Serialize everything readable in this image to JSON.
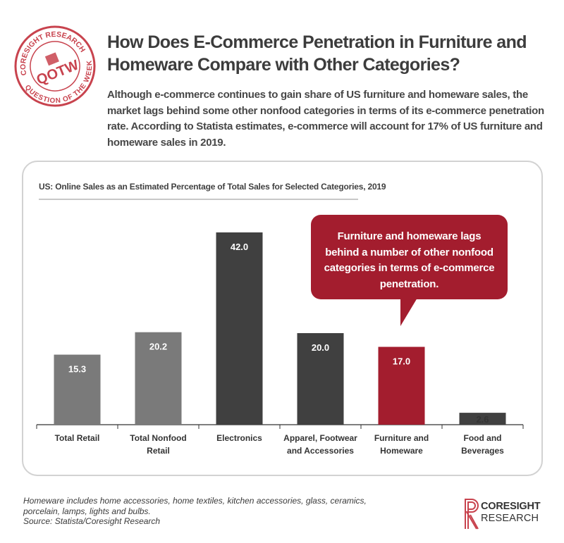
{
  "stamp": {
    "ring_top": "CORESIGHT RESEARCH",
    "ring_bottom": "QUESTION OF THE WEEK",
    "center": "QOTW",
    "color": "#c8434e"
  },
  "header": {
    "title": "How Does E-Commerce Penetration in Furniture and Homeware Compare with Other Categories?",
    "intro": "Although e-commerce continues to gain share of US furniture and homeware sales, the market lags behind some other nonfood categories in terms of its e-commerce penetration rate. According to Statista estimates, e-commerce will account for 17% of US furniture and homeware sales in 2019."
  },
  "callout": {
    "text": "Furniture and homeware lags behind a number of other nonfood categories in terms of e-commerce penetration."
  },
  "footnote": {
    "line1": "Homeware includes home accessories, home textiles, kitchen accessories, glass, ceramics,",
    "line2": "porcelain, lamps, lights and bulbs.",
    "line3": "Source: Statista/Coresight Research"
  },
  "logo": {
    "word1": "CORESIGHT",
    "word2": "RESEARCH",
    "color": "#c8434e"
  },
  "chart_data": {
    "type": "bar",
    "title": "US: Online Sales as an Estimated Percentage of Total Sales for Selected Categories, 2019",
    "xlabel": "",
    "ylabel": "",
    "ylim": [
      0,
      50
    ],
    "grid": false,
    "categories": [
      [
        "Total Retail"
      ],
      [
        "Total Nonfood",
        "Retail"
      ],
      [
        "Electronics"
      ],
      [
        "Apparel, Footwear",
        "and Accessories"
      ],
      [
        "Furniture and",
        "Homeware"
      ],
      [
        "Food and",
        "Beverages"
      ]
    ],
    "values": [
      15.3,
      20.2,
      42.0,
      20.0,
      17.0,
      2.6
    ],
    "value_labels": [
      "15.3",
      "20.2",
      "42.0",
      "20.0",
      "17.0",
      "2.6"
    ],
    "colors": [
      "#7a7a7a",
      "#7a7a7a",
      "#404040",
      "#404040",
      "#a31d2e",
      "#404040"
    ],
    "label_color": "#ffffff",
    "small_value_label_color": "#333333"
  }
}
